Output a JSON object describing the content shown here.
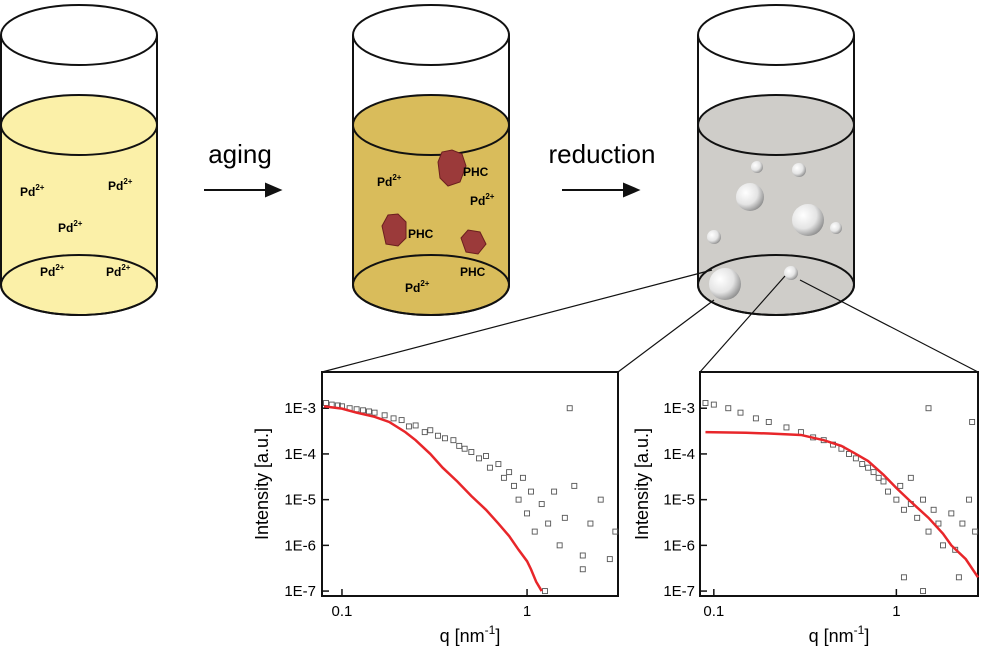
{
  "steps": [
    {
      "label": "aging"
    },
    {
      "label": "reduction"
    }
  ],
  "beaker1": {
    "ions": [
      {
        "base": "Pd",
        "charge": "2+"
      },
      {
        "base": "Pd",
        "charge": "2+"
      },
      {
        "base": "Pd",
        "charge": "2+"
      },
      {
        "base": "Pd",
        "charge": "2+"
      },
      {
        "base": "Pd",
        "charge": "2+"
      }
    ]
  },
  "beaker2": {
    "ions": [
      {
        "base": "Pd",
        "charge": "2+"
      },
      {
        "base": "Pd",
        "charge": "2+"
      },
      {
        "base": "Pd",
        "charge": "2+"
      }
    ],
    "clusters": [
      "PHC",
      "PHC",
      "PHC"
    ]
  },
  "chart_data": [
    {
      "type": "scatter",
      "log_x": true,
      "log_y": true,
      "y_label": "Intensity [a.u.]",
      "x_label": {
        "text": "q [nm",
        "sup": "-1",
        "close": "]"
      },
      "xlim": [
        0.078,
        3.1
      ],
      "ylim": [
        7.8e-08,
        0.0062
      ],
      "xticks": [
        0.1,
        1
      ],
      "yticks": [
        {
          "value": 0.001,
          "label": "1E-3"
        },
        {
          "value": 0.0001,
          "label": "1E-4"
        },
        {
          "value": 1e-05,
          "label": "1E-5"
        },
        {
          "value": 1e-06,
          "label": "1E-6"
        },
        {
          "value": 1e-07,
          "label": "1E-7"
        }
      ],
      "series": [
        {
          "mode": "markers",
          "color": "#555555",
          "x": [
            0.082,
            0.088,
            0.095,
            0.1,
            0.11,
            0.12,
            0.13,
            0.14,
            0.15,
            0.17,
            0.19,
            0.21,
            0.23,
            0.25,
            0.28,
            0.3,
            0.33,
            0.36,
            0.4,
            0.43,
            0.46,
            0.5,
            0.55,
            0.6,
            0.63,
            0.7,
            0.75,
            0.8,
            0.85,
            0.9,
            0.95,
            1.0,
            1.05,
            1.1,
            1.2,
            1.3,
            1.4,
            1.5,
            1.6,
            1.8,
            2.0,
            2.2,
            2.5,
            2.8,
            3.0,
            1.7,
            2.0,
            1.25
          ],
          "values": [
            0.0013,
            0.0012,
            0.00115,
            0.0011,
            0.001,
            0.00095,
            0.0009,
            0.00085,
            0.0008,
            0.0007,
            0.0006,
            0.00055,
            0.0004,
            0.00042,
            0.0003,
            0.00033,
            0.00025,
            0.00022,
            0.0002,
            0.00015,
            0.00013,
            0.00011,
            8e-05,
            9e-05,
            5e-05,
            6e-05,
            3e-05,
            4e-05,
            2e-05,
            1e-05,
            3e-05,
            5e-06,
            1.5e-05,
            2e-06,
            8e-06,
            3e-06,
            1.5e-05,
            1e-06,
            4e-06,
            2e-05,
            6e-07,
            3e-06,
            1e-05,
            5e-07,
            2e-06,
            0.001,
            3e-07,
            1e-07
          ]
        },
        {
          "mode": "line",
          "color": "#e8262a",
          "x": [
            0.08,
            0.1,
            0.12,
            0.15,
            0.18,
            0.22,
            0.25,
            0.3,
            0.35,
            0.42,
            0.5,
            0.6,
            0.7,
            0.8,
            0.9,
            1.0,
            1.05,
            1.12,
            1.2
          ],
          "values": [
            0.0011,
            0.00098,
            0.0008,
            0.00065,
            0.0005,
            0.0003,
            0.0002,
            0.0001,
            5e-05,
            2.5e-05,
            1.2e-05,
            6e-06,
            3e-06,
            1.6e-06,
            8e-07,
            4.5e-07,
            3e-07,
            1.6e-07,
            1e-07
          ]
        }
      ]
    },
    {
      "type": "scatter",
      "log_x": true,
      "log_y": true,
      "y_label": "Intensity [a.u.]",
      "x_label": {
        "text": "q [nm",
        "sup": "-1",
        "close": "]"
      },
      "xlim": [
        0.084,
        2.8
      ],
      "ylim": [
        7.8e-08,
        0.0062
      ],
      "xticks": [
        0.1,
        1
      ],
      "yticks": [
        {
          "value": 0.001,
          "label": "1E-3"
        },
        {
          "value": 0.0001,
          "label": "1E-4"
        },
        {
          "value": 1e-05,
          "label": "1E-5"
        },
        {
          "value": 1e-06,
          "label": "1E-6"
        },
        {
          "value": 1e-07,
          "label": "1E-7"
        }
      ],
      "series": [
        {
          "mode": "markers",
          "color": "#555555",
          "x": [
            0.09,
            0.1,
            0.12,
            0.14,
            0.17,
            0.2,
            0.25,
            0.3,
            0.35,
            0.4,
            0.45,
            0.5,
            0.55,
            0.6,
            0.65,
            0.7,
            0.75,
            0.8,
            0.85,
            0.9,
            1.0,
            1.05,
            1.1,
            1.2,
            1.3,
            1.4,
            1.5,
            1.6,
            1.7,
            1.8,
            2.0,
            2.1,
            2.3,
            2.5,
            2.7,
            1.5,
            2.6,
            1.1,
            1.4,
            2.2,
            1.2
          ],
          "values": [
            0.0013,
            0.0012,
            0.001,
            0.0008,
            0.0006,
            0.0005,
            0.00038,
            0.0003,
            0.00023,
            0.0002,
            0.00016,
            0.00013,
            0.0001,
            8e-05,
            6e-05,
            5e-05,
            4e-05,
            3e-05,
            2.5e-05,
            1.5e-05,
            1e-05,
            2e-05,
            6e-06,
            8e-06,
            4e-06,
            1e-05,
            2e-06,
            6e-06,
            3e-06,
            1e-06,
            5e-06,
            8e-07,
            3e-06,
            1e-05,
            2e-06,
            0.001,
            0.0005,
            2e-07,
            1e-07,
            2e-07,
            3e-05
          ]
        },
        {
          "mode": "line",
          "color": "#e8262a",
          "x": [
            0.09,
            0.15,
            0.2,
            0.3,
            0.4,
            0.5,
            0.6,
            0.7,
            0.85,
            1.0,
            1.2,
            1.5,
            1.8,
            2.0,
            2.4,
            2.8
          ],
          "values": [
            0.0003,
            0.00029,
            0.00028,
            0.00026,
            0.0002,
            0.00015,
            0.0001,
            7e-05,
            3.5e-05,
            1.8e-05,
            9e-06,
            4e-06,
            1.8e-06,
            1e-06,
            5e-07,
            2e-07
          ]
        }
      ]
    }
  ]
}
